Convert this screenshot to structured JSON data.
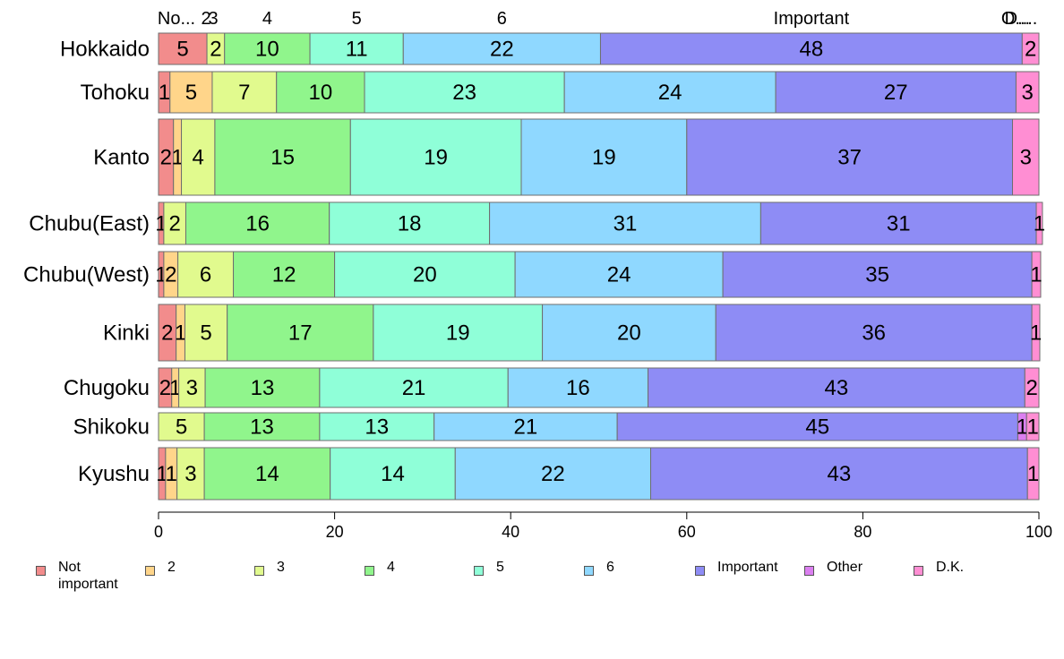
{
  "chart_data": {
    "type": "bar",
    "orientation": "horizontal",
    "stacked": true,
    "title": "",
    "xlabel": "",
    "ylabel": "",
    "xlim": [
      0,
      100
    ],
    "x_ticks": [
      "0",
      "20",
      "40",
      "60",
      "80",
      "100"
    ],
    "categories": [
      "Hokkaido",
      "Tohoku",
      "Kanto",
      "Chubu(East)",
      "Chubu(West)",
      "Kinki",
      "Chugoku",
      "Shikoku",
      "Kyushu"
    ],
    "series": [
      {
        "name": "Not important",
        "color": "#F28C8C",
        "values": [
          5.5,
          1.3,
          1.7,
          0.6,
          0.6,
          2.0,
          1.5,
          0.0,
          0.8
        ]
      },
      {
        "name": "2",
        "color": "#FFD58A",
        "values": [
          0.0,
          4.8,
          0.9,
          0.0,
          1.6,
          1.0,
          0.8,
          0.0,
          1.3
        ]
      },
      {
        "name": "3",
        "color": "#E1FA8E",
        "values": [
          2.0,
          7.3,
          3.8,
          2.5,
          6.3,
          4.8,
          3.0,
          5.2,
          3.1
        ]
      },
      {
        "name": "4",
        "color": "#90F58C",
        "values": [
          9.7,
          10.0,
          15.4,
          16.3,
          11.5,
          16.6,
          13.0,
          13.1,
          14.3
        ]
      },
      {
        "name": "5",
        "color": "#8FFFD8",
        "values": [
          10.6,
          22.7,
          19.4,
          18.2,
          20.5,
          19.2,
          21.4,
          13.0,
          14.2
        ]
      },
      {
        "name": "6",
        "color": "#8FD8FF",
        "values": [
          22.4,
          24.0,
          18.8,
          30.8,
          23.6,
          19.7,
          15.9,
          20.8,
          22.2
        ]
      },
      {
        "name": "Important",
        "color": "#8E8CF5",
        "values": [
          47.9,
          27.3,
          37.0,
          31.3,
          35.1,
          35.9,
          42.8,
          45.5,
          42.8
        ]
      },
      {
        "name": "Other",
        "color": "#DB7FF0",
        "values": [
          0.0,
          0.0,
          0.0,
          0.0,
          0.0,
          0.0,
          0.0,
          1.0,
          0.0
        ]
      },
      {
        "name": "D.K.",
        "color": "#FF8ED3",
        "values": [
          1.9,
          2.6,
          3.0,
          0.7,
          1.0,
          0.9,
          1.6,
          1.4,
          1.3
        ]
      }
    ],
    "data_labels": [
      [
        "5",
        "",
        "2",
        "10",
        "11",
        "22",
        "48",
        "",
        "2"
      ],
      [
        "1",
        "5",
        "7",
        "10",
        "23",
        "24",
        "27",
        "",
        "3"
      ],
      [
        "2",
        "1",
        "4",
        "15",
        "19",
        "19",
        "37",
        "",
        "3"
      ],
      [
        "1",
        "",
        "2",
        "16",
        "18",
        "31",
        "31",
        "",
        "1"
      ],
      [
        "1",
        "2",
        "6",
        "12",
        "20",
        "24",
        "35",
        "",
        "1"
      ],
      [
        "2",
        "1",
        "5",
        "17",
        "19",
        "20",
        "36",
        "",
        "1"
      ],
      [
        "2",
        "1",
        "3",
        "13",
        "21",
        "16",
        "43",
        "",
        "2"
      ],
      [
        "",
        "",
        "5",
        "13",
        "13",
        "21",
        "45",
        "1",
        "1"
      ],
      [
        "1",
        "1",
        "3",
        "14",
        "14",
        "22",
        "43",
        "",
        "1"
      ]
    ],
    "top_labels": [
      "No...",
      "2",
      "3",
      "4",
      "5",
      "6",
      "Important",
      "O...",
      "D...."
    ],
    "legend": {
      "placement": "bottom",
      "labels": [
        "Not\nimportant",
        "2",
        "3",
        "4",
        "5",
        "6",
        "Important",
        "Other",
        "D.K."
      ]
    }
  }
}
